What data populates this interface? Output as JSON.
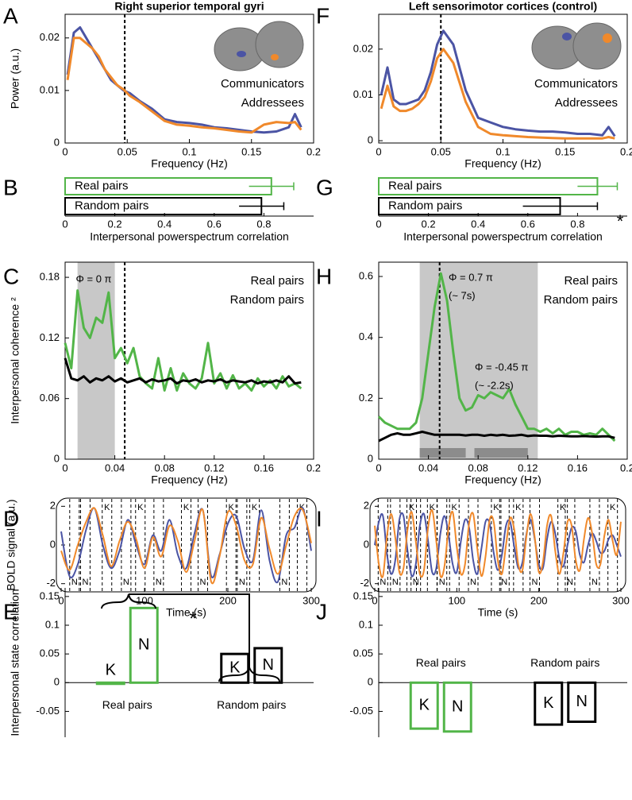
{
  "chart_data": [
    {
      "type": "line",
      "panel": "A",
      "title": "Right superior temporal gyri",
      "xlabel": "Frequency (Hz)",
      "ylabel": "Power (a.u.)",
      "xlim": [
        0,
        0.2
      ],
      "ylim": [
        0,
        0.0245
      ],
      "xticks": [
        0,
        0.05,
        0.1,
        0.15,
        0.2
      ],
      "yticks": [
        0,
        0.01,
        0.02
      ],
      "vline": 0.048,
      "legend": "center right",
      "frame": "box",
      "x": [
        0.002,
        0.007,
        0.012,
        0.017,
        0.022,
        0.027,
        0.032,
        0.037,
        0.042,
        0.047,
        0.052,
        0.06,
        0.07,
        0.08,
        0.09,
        0.1,
        0.11,
        0.12,
        0.13,
        0.14,
        0.15,
        0.16,
        0.17,
        0.18,
        0.185,
        0.19
      ],
      "series": [
        {
          "name": "Communicators",
          "color": "#4b54a4",
          "values": [
            0.013,
            0.021,
            0.022,
            0.02,
            0.018,
            0.016,
            0.014,
            0.012,
            0.011,
            0.01,
            0.0095,
            0.008,
            0.0065,
            0.0045,
            0.004,
            0.0038,
            0.0035,
            0.003,
            0.0028,
            0.0025,
            0.0022,
            0.002,
            0.0022,
            0.003,
            0.0055,
            0.003
          ]
        },
        {
          "name": "Addressees",
          "color": "#f0892b",
          "values": [
            0.012,
            0.02,
            0.02,
            0.019,
            0.018,
            0.0165,
            0.014,
            0.0125,
            0.011,
            0.0102,
            0.009,
            0.0078,
            0.006,
            0.0042,
            0.0035,
            0.0033,
            0.003,
            0.0028,
            0.0025,
            0.0022,
            0.002,
            0.0035,
            0.004,
            0.0038,
            0.004,
            0.0025
          ]
        }
      ]
    },
    {
      "type": "hbar",
      "panel": "B",
      "xlabel": "Interpersonal powerspectrum correlation",
      "xlim": [
        0,
        1
      ],
      "xticks": [
        0,
        0.2,
        0.4,
        0.6,
        0.8
      ],
      "categories": [
        "Real pairs",
        "Random pairs"
      ],
      "values": [
        0.83,
        0.79
      ],
      "errors": [
        0.09,
        0.09
      ],
      "colors": [
        "#52b548",
        "#000000"
      ]
    },
    {
      "type": "line",
      "panel": "C",
      "xlabel": "Frequency (Hz)",
      "ylabel": "Interpersonal coherence ²",
      "xlim": [
        0,
        0.2
      ],
      "ylim": [
        0,
        0.195
      ],
      "xticks": [
        0,
        0.04,
        0.08,
        0.12,
        0.16,
        0.2
      ],
      "yticks": [
        0,
        0.06,
        0.12,
        0.18
      ],
      "vline": 0.048,
      "shade": [
        0.01,
        0.04
      ],
      "legend": "upper right",
      "frame": "box",
      "annotations": [
        "Φ = 0 π"
      ],
      "x": [
        0,
        0.005,
        0.01,
        0.015,
        0.02,
        0.025,
        0.03,
        0.035,
        0.04,
        0.045,
        0.05,
        0.055,
        0.06,
        0.065,
        0.07,
        0.075,
        0.08,
        0.085,
        0.09,
        0.095,
        0.1,
        0.105,
        0.11,
        0.115,
        0.12,
        0.125,
        0.13,
        0.135,
        0.14,
        0.145,
        0.15,
        0.155,
        0.16,
        0.165,
        0.17,
        0.175,
        0.18,
        0.185,
        0.19
      ],
      "series": [
        {
          "name": "Real pairs",
          "color": "#52b548",
          "values": [
            0.115,
            0.09,
            0.167,
            0.13,
            0.12,
            0.14,
            0.135,
            0.165,
            0.1,
            0.11,
            0.095,
            0.11,
            0.082,
            0.075,
            0.07,
            0.1,
            0.068,
            0.09,
            0.068,
            0.085,
            0.075,
            0.07,
            0.08,
            0.115,
            0.075,
            0.085,
            0.07,
            0.083,
            0.07,
            0.075,
            0.068,
            0.08,
            0.072,
            0.078,
            0.07,
            0.082,
            0.072,
            0.075,
            0.07
          ]
        },
        {
          "name": "Random pairs",
          "color": "#000000",
          "values": [
            0.1,
            0.08,
            0.078,
            0.082,
            0.076,
            0.08,
            0.078,
            0.082,
            0.077,
            0.08,
            0.076,
            0.078,
            0.08,
            0.076,
            0.079,
            0.077,
            0.078,
            0.08,
            0.075,
            0.078,
            0.077,
            0.079,
            0.076,
            0.078,
            0.077,
            0.079,
            0.076,
            0.078,
            0.077,
            0.076,
            0.078,
            0.075,
            0.077,
            0.076,
            0.078,
            0.076,
            0.082,
            0.075,
            0.076
          ]
        }
      ]
    },
    {
      "type": "line",
      "panel": "D",
      "xlabel": "Time (s)",
      "ylabel": "BOLD signal (a.u.)",
      "frame": "rounded",
      "curve": "smooth",
      "xlim": [
        0,
        300
      ],
      "ylim": [
        -2.3,
        2.3
      ],
      "xticks": [
        0,
        100,
        200,
        300
      ],
      "yticks": [
        -2,
        0,
        2
      ],
      "top_events": {
        "label": "K",
        "x": [
          55,
          95,
          150,
          204,
          232,
          289
        ]
      },
      "bottom_events": {
        "label": "N",
        "x": [
          16,
          29,
          78,
          117,
          170,
          217,
          268
        ]
      },
      "x": [
        0,
        10,
        20,
        30,
        40,
        50,
        60,
        70,
        80,
        90,
        100,
        110,
        120,
        130,
        140,
        150,
        160,
        170,
        180,
        190,
        200,
        210,
        220,
        230,
        240,
        250,
        260,
        270,
        280,
        290,
        300
      ],
      "series": [
        {
          "color": "#4b54a4",
          "values": [
            0.7,
            -1.6,
            -1,
            0.8,
            1.9,
            0,
            -1.2,
            -0.3,
            1.3,
            0,
            -1,
            0.5,
            -0.3,
            1.3,
            -0.5,
            -1.2,
            0.6,
            1.8,
            -1.6,
            -0.5,
            1.1,
            1.5,
            -0.2,
            -0.8,
            1.8,
            -0.8,
            -1.9,
            0.5,
            0.9,
            1.9,
            -0.3
          ]
        },
        {
          "color": "#f0892b",
          "values": [
            -0.3,
            -1.3,
            0,
            1.2,
            1.9,
            0.5,
            -1.1,
            0.2,
            1.2,
            0.3,
            -1.2,
            0.4,
            -0.6,
            1,
            0.2,
            -1.4,
            0.2,
            1.8,
            -1.9,
            -0.6,
            1.7,
            1,
            -0.8,
            -1,
            1.4,
            -0.2,
            -1.5,
            0,
            1.5,
            1.8,
            0.1
          ]
        }
      ]
    },
    {
      "type": "bar",
      "panel": "E",
      "ylabel": "Interpersonal state correlation",
      "ylim": [
        -0.095,
        0.165
      ],
      "yticks": [
        -0.05,
        0,
        0.05,
        0.1,
        0.15
      ],
      "categories": [
        "K",
        "N"
      ],
      "annotations": [
        "*"
      ],
      "series": [
        {
          "name": "Real pairs",
          "color": "#52b548",
          "values": [
            -0.002,
            0.13
          ]
        },
        {
          "name": "Random pairs",
          "color": "#000000",
          "values": [
            0.05,
            0.06
          ]
        }
      ]
    },
    {
      "type": "line",
      "panel": "F",
      "title": "Left sensorimotor cortices (control)",
      "xlabel": "Frequency (Hz)",
      "xlim": [
        0,
        0.2
      ],
      "ylim": [
        -0.0005,
        0.0276
      ],
      "xticks": [
        0,
        0.05,
        0.1,
        0.15,
        0.2
      ],
      "yticks": [
        0,
        0.01,
        0.02
      ],
      "vline": 0.05,
      "legend": "center right",
      "frame": "box",
      "x": [
        0.002,
        0.007,
        0.012,
        0.017,
        0.022,
        0.027,
        0.032,
        0.037,
        0.042,
        0.047,
        0.052,
        0.06,
        0.07,
        0.08,
        0.09,
        0.1,
        0.11,
        0.12,
        0.13,
        0.14,
        0.15,
        0.16,
        0.17,
        0.18,
        0.185,
        0.19
      ],
      "series": [
        {
          "name": "Communicators",
          "color": "#4b54a4",
          "values": [
            0.01,
            0.016,
            0.009,
            0.008,
            0.008,
            0.0085,
            0.009,
            0.011,
            0.015,
            0.021,
            0.024,
            0.021,
            0.011,
            0.005,
            0.004,
            0.003,
            0.0025,
            0.0022,
            0.002,
            0.002,
            0.0018,
            0.0015,
            0.0015,
            0.0012,
            0.003,
            0.001
          ]
        },
        {
          "name": "Addressees",
          "color": "#f0892b",
          "values": [
            0.007,
            0.012,
            0.0075,
            0.0065,
            0.0065,
            0.007,
            0.008,
            0.0095,
            0.013,
            0.018,
            0.02,
            0.017,
            0.0085,
            0.003,
            0.0015,
            0.0012,
            0.001,
            0.0008,
            0.0007,
            0.0006,
            0.0005,
            0.0005,
            0.0005,
            0.0005,
            0.0008,
            0.0005
          ]
        }
      ]
    },
    {
      "type": "hbar",
      "panel": "G",
      "xlabel": "Interpersonal powerspectrum correlation",
      "xlim": [
        0,
        1
      ],
      "xticks": [
        0,
        0.2,
        0.4,
        0.6,
        0.8
      ],
      "categories": [
        "Real pairs",
        "Random pairs"
      ],
      "values": [
        0.88,
        0.73
      ],
      "errors": [
        0.08,
        0.15
      ],
      "colors": [
        "#52b548",
        "#000000"
      ],
      "annotations": [
        "*"
      ]
    },
    {
      "type": "line",
      "panel": "H",
      "xlabel": "Frequency (Hz)",
      "xlim": [
        0,
        0.2
      ],
      "ylim": [
        0,
        0.647
      ],
      "xticks": [
        0,
        0.04,
        0.08,
        0.12,
        0.16,
        0.2
      ],
      "yticks": [
        0,
        0.2,
        0.4,
        0.6
      ],
      "vline": 0.049,
      "shade": [
        0.033,
        0.128
      ],
      "subshades": [
        [
          0.033,
          0.07
        ],
        [
          0.077,
          0.12
        ]
      ],
      "legend": "upper right",
      "frame": "box",
      "annotations": [
        "Φ = 0.7 π",
        "(~ 7s)",
        "Φ = -0.45 π",
        "(~ -2.2s)"
      ],
      "x": [
        0,
        0.005,
        0.01,
        0.015,
        0.02,
        0.025,
        0.03,
        0.035,
        0.04,
        0.045,
        0.05,
        0.055,
        0.06,
        0.065,
        0.07,
        0.075,
        0.08,
        0.085,
        0.09,
        0.095,
        0.1,
        0.105,
        0.11,
        0.115,
        0.12,
        0.125,
        0.13,
        0.135,
        0.14,
        0.145,
        0.15,
        0.155,
        0.16,
        0.165,
        0.17,
        0.175,
        0.18,
        0.185,
        0.19
      ],
      "series": [
        {
          "name": "Real pairs",
          "color": "#52b548",
          "values": [
            0.14,
            0.12,
            0.11,
            0.1,
            0.1,
            0.1,
            0.12,
            0.2,
            0.35,
            0.5,
            0.61,
            0.52,
            0.35,
            0.2,
            0.16,
            0.17,
            0.21,
            0.2,
            0.22,
            0.21,
            0.2,
            0.23,
            0.18,
            0.14,
            0.1,
            0.1,
            0.09,
            0.1,
            0.085,
            0.1,
            0.08,
            0.09,
            0.09,
            0.08,
            0.085,
            0.08,
            0.1,
            0.08,
            0.06
          ]
        },
        {
          "name": "Random pairs",
          "color": "#000000",
          "values": [
            0.06,
            0.07,
            0.08,
            0.085,
            0.08,
            0.08,
            0.085,
            0.09,
            0.085,
            0.08,
            0.08,
            0.08,
            0.08,
            0.08,
            0.078,
            0.08,
            0.08,
            0.077,
            0.08,
            0.078,
            0.08,
            0.077,
            0.078,
            0.08,
            0.076,
            0.078,
            0.077,
            0.077,
            0.075,
            0.077,
            0.076,
            0.075,
            0.075,
            0.076,
            0.075,
            0.074,
            0.075,
            0.075,
            0.07
          ]
        }
      ]
    },
    {
      "type": "line",
      "panel": "I",
      "xlabel": "Time (s)",
      "frame": "rounded",
      "curve": "smooth",
      "xlim": [
        0,
        300
      ],
      "ylim": [
        -2.3,
        2.3
      ],
      "xticks": [
        0,
        100,
        200,
        300
      ],
      "yticks": [
        -2,
        0,
        2
      ],
      "top_events": {
        "label": "K",
        "x": [
          45,
          70,
          97,
          148,
          175,
          229,
          290
        ]
      },
      "bottom_events": {
        "label": "N",
        "x": [
          10,
          25,
          50,
          82,
          120,
          158,
          195,
          238,
          268
        ]
      },
      "x": [
        0,
        5,
        10,
        15,
        20,
        25,
        30,
        35,
        40,
        45,
        50,
        55,
        60,
        65,
        70,
        75,
        80,
        85,
        90,
        95,
        100,
        105,
        110,
        115,
        120,
        125,
        130,
        135,
        140,
        145,
        150,
        155,
        160,
        165,
        170,
        175,
        180,
        185,
        190,
        195,
        200,
        205,
        210,
        215,
        220,
        225,
        230,
        235,
        240,
        245,
        250,
        255,
        260,
        265,
        270,
        275,
        280,
        285,
        290,
        295,
        300
      ],
      "series": [
        {
          "color": "#4b54a4",
          "values": [
            0,
            1.2,
            1.5,
            -0.5,
            -1.5,
            -0.8,
            1.3,
            1.5,
            -0.3,
            -1.6,
            -1,
            1,
            1.6,
            0.2,
            -1.4,
            -1.2,
            0.6,
            1.5,
            0.5,
            -1,
            -1.4,
            0.2,
            1.3,
            0.9,
            -0.8,
            -1.5,
            -0.2,
            1.2,
            1.1,
            -0.4,
            -1.3,
            -0.5,
            1,
            1.2,
            -0.1,
            -1.2,
            -0.9,
            0.6,
            1.3,
            0.3,
            -1,
            -1.2,
            0.3,
            1.2,
            0.6,
            -0.7,
            -1.1,
            0,
            0.9,
            0.7,
            -0.5,
            -0.9,
            0,
            0.6,
            0.2,
            -0.4,
            -0.3,
            0.3,
            0.5,
            0,
            -0.6
          ]
        },
        {
          "color": "#f0892b",
          "values": [
            1,
            -1,
            -1.6,
            0.5,
            1.6,
            0.4,
            -1.4,
            -1.2,
            0.8,
            1.7,
            0.2,
            -1.5,
            -1.3,
            0.9,
            1.8,
            0.2,
            -1.6,
            -1.1,
            0.9,
            1.7,
            -0.1,
            -1.5,
            -1,
            1.1,
            1.6,
            -0.2,
            -1.6,
            -0.6,
            1.3,
            1.2,
            -0.8,
            -1.5,
            0,
            1.4,
            0.8,
            -1,
            -1.3,
            0.5,
            1.6,
            0.4,
            -1.4,
            -0.9,
            1,
            1.5,
            -0.3,
            -1.5,
            -0.4,
            1.2,
            1,
            -0.8,
            -1.3,
            0.3,
            1.4,
            0.6,
            -1,
            -1,
            0.5,
            1.3,
            0.2,
            -0.5,
            1.2
          ]
        }
      ]
    },
    {
      "type": "bar",
      "panel": "J",
      "ylim": [
        -0.095,
        0.165
      ],
      "yticks": [
        -0.05,
        0,
        0.05,
        0.1,
        0.15
      ],
      "categories": [
        "K",
        "N"
      ],
      "series": [
        {
          "name": "Real pairs",
          "color": "#52b548",
          "values": [
            -0.08,
            -0.085
          ]
        },
        {
          "name": "Random pairs",
          "color": "#000000",
          "values": [
            -0.073,
            -0.068
          ]
        }
      ]
    }
  ]
}
